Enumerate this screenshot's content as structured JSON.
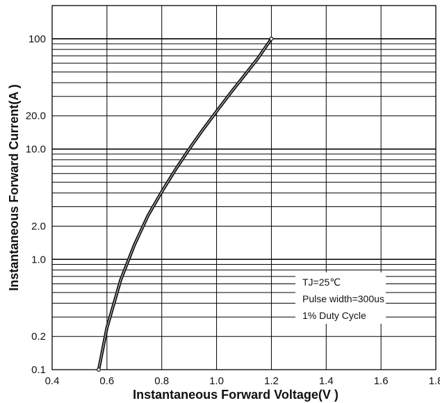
{
  "chart_data": {
    "type": "line",
    "xlabel": "Instantaneous Forward Voltage(V  )",
    "ylabel": "Instantaneous Forward Current(A )",
    "xscale": "linear",
    "yscale": "log",
    "xlim": [
      0.4,
      1.8
    ],
    "ylim": [
      0.1,
      200
    ],
    "grid": true,
    "x_tick_labels": [
      "0.4",
      "0.6",
      "0.8",
      "1.0",
      "1.2",
      "1.4",
      "1.6",
      "1.8"
    ],
    "y_tick_labels": [
      "0.1",
      "0.2",
      "1.0",
      "2.0",
      "10.0",
      "20.0",
      "100"
    ],
    "annotations": [
      "TJ=25℃",
      "Pulse width=300us",
      "1% Duty Cycle"
    ],
    "series": [
      {
        "x": [
          0.57,
          0.6,
          0.65,
          0.7,
          0.75,
          0.8,
          0.85,
          0.9,
          0.95,
          1.0,
          1.05,
          1.1,
          1.15,
          1.2
        ],
        "y": [
          0.1,
          0.24,
          0.65,
          1.35,
          2.5,
          4.1,
          6.5,
          10.0,
          15.0,
          22.0,
          32.0,
          46.0,
          66.0,
          100.0
        ]
      }
    ]
  }
}
